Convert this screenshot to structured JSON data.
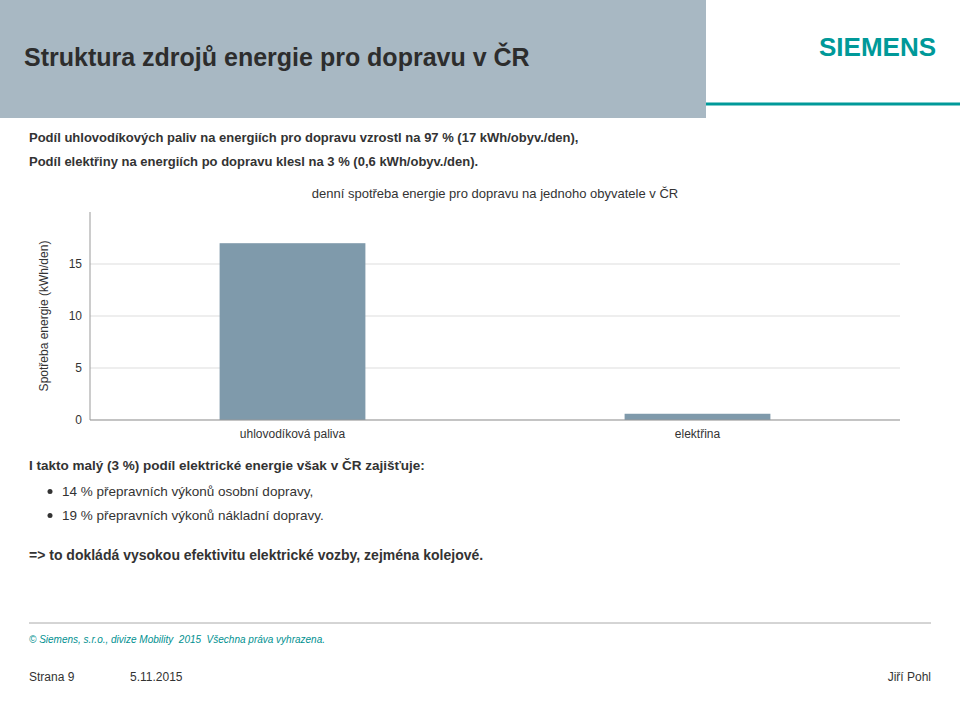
{
  "header_title": "Struktura zdrojů energie pro dopravu v ČR",
  "logo_text": "SIEMENS",
  "subtitle_lines": [
    "Podíl uhlovodíkových paliv na energiích pro dopravu vzrostl na 97 % (17 kWh/obyv./den),",
    "Podíl elektřiny na energiích po dopravu klesl na 3 % (0,6 kWh/obyv./den)."
  ],
  "chart_data": {
    "type": "bar",
    "title": "denní spotřeba energie pro dopravu na jednoho obyvatele v ČR",
    "categories": [
      "uhlovodíková paliva",
      "elektřina"
    ],
    "values": [
      17.0,
      0.6
    ],
    "color": "#7f9aab",
    "ylabel": "Spotřeba energie (kWh/den)",
    "ylim": [
      0,
      20
    ],
    "yticks": [
      0,
      5,
      10,
      15
    ],
    "grid": true
  },
  "footer_intro": "I takto malý (3 %) podíl elektrické energie však v ČR zajišťuje:",
  "footer_bullets": [
    "14 % přepravních výkonů osobní dopravy,",
    "19 % přepravních výkonů nákladní dopravy."
  ],
  "footer_conclusion": "=> to dokládá vysokou efektivitu elektrické vozby, zejména kolejové.",
  "copyright": "© Siemens, s.r.o., divize Mobility  2015  Všechna práva vyhrazena.",
  "page": "Strana 9",
  "date": "5.11.2015",
  "author": "Jiří Pohl"
}
